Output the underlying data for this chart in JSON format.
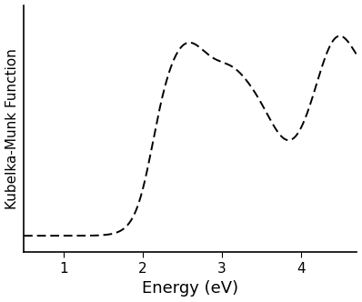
{
  "title": "",
  "xlabel": "Energy (eV)",
  "ylabel": "Kubelka-Munk Function",
  "xlim": [
    0.5,
    4.7
  ],
  "ylim": [
    -0.05,
    1.15
  ],
  "xticks": [
    1,
    2,
    3,
    4
  ],
  "line_color": "#000000",
  "line_style": "--",
  "line_width": 1.4,
  "background_color": "#ffffff",
  "xlabel_fontsize": 13,
  "ylabel_fontsize": 11,
  "tick_fontsize": 11
}
